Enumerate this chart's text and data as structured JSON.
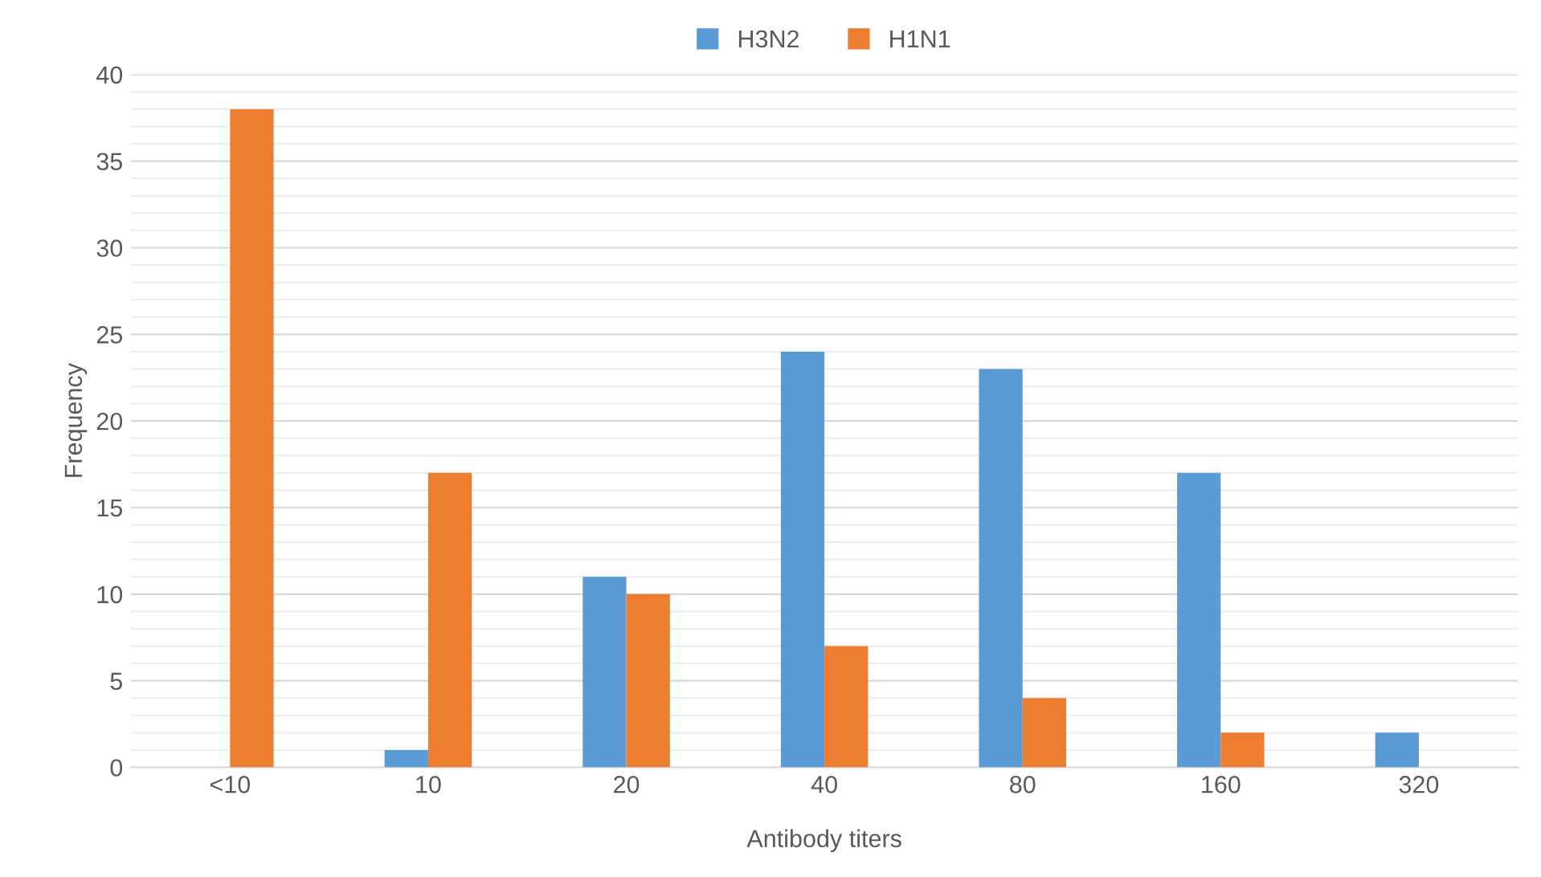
{
  "chart_data": {
    "type": "bar",
    "xlabel": "Antibody titers",
    "ylabel": "Frequency",
    "categories": [
      "<10",
      "10",
      "20",
      "40",
      "80",
      "160",
      "320"
    ],
    "series": [
      {
        "name": "H3N2",
        "color": "#5b9bd5",
        "values": [
          0,
          1,
          11,
          24,
          23,
          17,
          2
        ]
      },
      {
        "name": "H1N1",
        "color": "#ed7d31",
        "values": [
          38,
          17,
          10,
          7,
          4,
          2,
          0
        ]
      }
    ],
    "ylim": [
      0,
      40
    ],
    "yticks": [
      0,
      {
        "value": 1,
        "label": null
      },
      {
        "value": 2,
        "label": null
      },
      {
        "value": 3,
        "label": null
      },
      {
        "value": 4,
        "label": null
      },
      5,
      {
        "value": 6,
        "label": null
      },
      {
        "value": 7,
        "label": null
      },
      {
        "value": 8,
        "label": null
      },
      {
        "value": 9,
        "label": null
      },
      10,
      {
        "value": 11,
        "label": null
      },
      {
        "value": 12,
        "label": null
      },
      {
        "value": 13,
        "label": null
      },
      {
        "value": 14,
        "label": null
      },
      15,
      {
        "value": 16,
        "label": null
      },
      {
        "value": 17,
        "label": null
      },
      {
        "value": 18,
        "label": null
      },
      {
        "value": 19,
        "label": null
      },
      20,
      {
        "value": 21,
        "label": null
      },
      {
        "value": 22,
        "label": null
      },
      {
        "value": 23,
        "label": null
      },
      {
        "value": 24,
        "label": null
      },
      25,
      {
        "value": 26,
        "label": null
      },
      {
        "value": 27,
        "label": null
      },
      {
        "value": 28,
        "label": null
      },
      {
        "value": 29,
        "label": null
      },
      30,
      {
        "value": 31,
        "label": null
      },
      {
        "value": 32,
        "label": null
      },
      {
        "value": 33,
        "label": null
      },
      {
        "value": 34,
        "label": null
      },
      35,
      {
        "value": 36,
        "label": null
      },
      {
        "value": 37,
        "label": null
      },
      {
        "value": 38,
        "label": null
      },
      {
        "value": 39,
        "label": null
      },
      40
    ],
    "grid": "y",
    "legend": "top"
  }
}
